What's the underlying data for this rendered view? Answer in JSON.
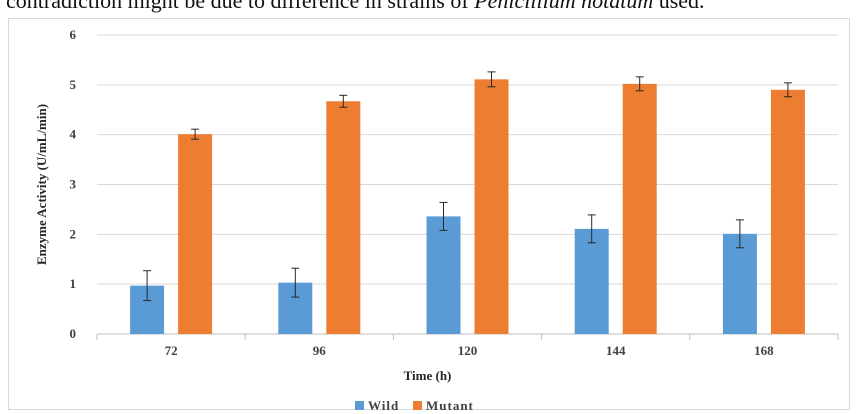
{
  "page": {
    "top_text_prefix": "contradiction might be due to difference in strains of ",
    "top_text_italic": "Penicillium notatum",
    "top_text_suffix": " used."
  },
  "colors": {
    "wild": "#5b9bd5",
    "mutant": "#ed7d31",
    "grid": "#d9d9d9",
    "axis": "#bfbfbf",
    "error_bar": "#262626"
  },
  "chart_data": {
    "type": "bar",
    "categories": [
      "72",
      "96",
      "120",
      "144",
      "168"
    ],
    "series": [
      {
        "name": "Wild",
        "values": [
          0.97,
          1.03,
          2.36,
          2.11,
          2.01
        ],
        "errors": [
          0.3,
          0.29,
          0.28,
          0.28,
          0.28
        ]
      },
      {
        "name": "Mutant",
        "values": [
          4.01,
          4.67,
          5.11,
          5.02,
          4.9
        ],
        "errors": [
          0.1,
          0.12,
          0.15,
          0.14,
          0.14
        ]
      }
    ],
    "xlabel": "Time (h)",
    "ylabel": "Enzyme Activity (U/mL/min)",
    "ylim": [
      0,
      6
    ],
    "yticks": [
      "0",
      "1",
      "2",
      "3",
      "4",
      "5",
      "6"
    ],
    "grid": true,
    "legend_position": "bottom"
  }
}
